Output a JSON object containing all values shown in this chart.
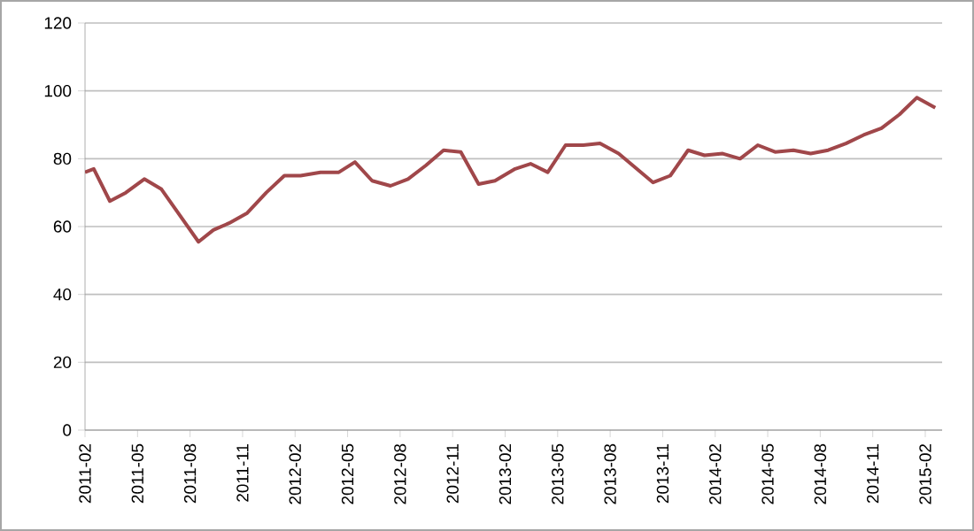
{
  "chart_data": {
    "type": "line",
    "color": "#a0474a",
    "x": [
      "2011-02-01",
      "2011-02-15",
      "2011-03-14",
      "2011-04-11",
      "2011-05-13",
      "2011-06-12",
      "2011-08-16",
      "2011-09-11",
      "2011-10-08",
      "2011-11-09",
      "2011-12-12",
      "2012-01-13",
      "2012-02-10",
      "2012-03-15",
      "2012-04-16",
      "2012-05-14",
      "2012-06-13",
      "2012-07-15",
      "2012-08-15",
      "2012-09-15",
      "2012-10-16",
      "2012-11-15",
      "2012-12-16",
      "2013-01-14",
      "2013-02-17",
      "2013-03-15",
      "2013-04-14",
      "2013-05-15",
      "2013-06-15",
      "2013-07-14",
      "2013-08-16",
      "2013-10-15",
      "2013-11-14",
      "2013-12-15",
      "2014-01-13",
      "2014-02-13",
      "2014-03-14",
      "2014-04-14",
      "2014-05-14",
      "2014-06-15",
      "2014-07-15",
      "2014-08-15",
      "2014-09-15",
      "2014-10-16",
      "2014-11-16",
      "2014-12-17",
      "2015-01-17",
      "2015-02-17"
    ],
    "values": [
      76,
      77,
      67.5,
      70,
      74,
      71,
      55.5,
      59,
      61,
      64,
      70,
      75,
      75,
      76,
      76,
      79,
      73.5,
      72,
      74,
      78,
      82.5,
      82,
      72.5,
      73.5,
      77,
      78.5,
      76,
      84,
      84,
      84.5,
      81.5,
      73,
      75,
      82.5,
      81,
      81.5,
      80,
      84,
      82,
      82.5,
      81.5,
      82.5,
      84.5,
      87,
      89,
      93,
      98,
      95
    ],
    "xlim": [
      "2011-02-01",
      "2015-02-28"
    ],
    "xticks": [
      "2011-02",
      "2011-05",
      "2011-08",
      "2011-11",
      "2012-02",
      "2012-05",
      "2012-08",
      "2012-11",
      "2013-02",
      "2013-05",
      "2013-08",
      "2013-11",
      "2014-02",
      "2014-05",
      "2014-08",
      "2014-11",
      "2015-02"
    ],
    "ylim": [
      0,
      120
    ],
    "yticks": [
      0,
      20,
      40,
      60,
      80,
      100,
      120
    ],
    "grid": "y",
    "marker": "none",
    "line_style": "solid"
  }
}
